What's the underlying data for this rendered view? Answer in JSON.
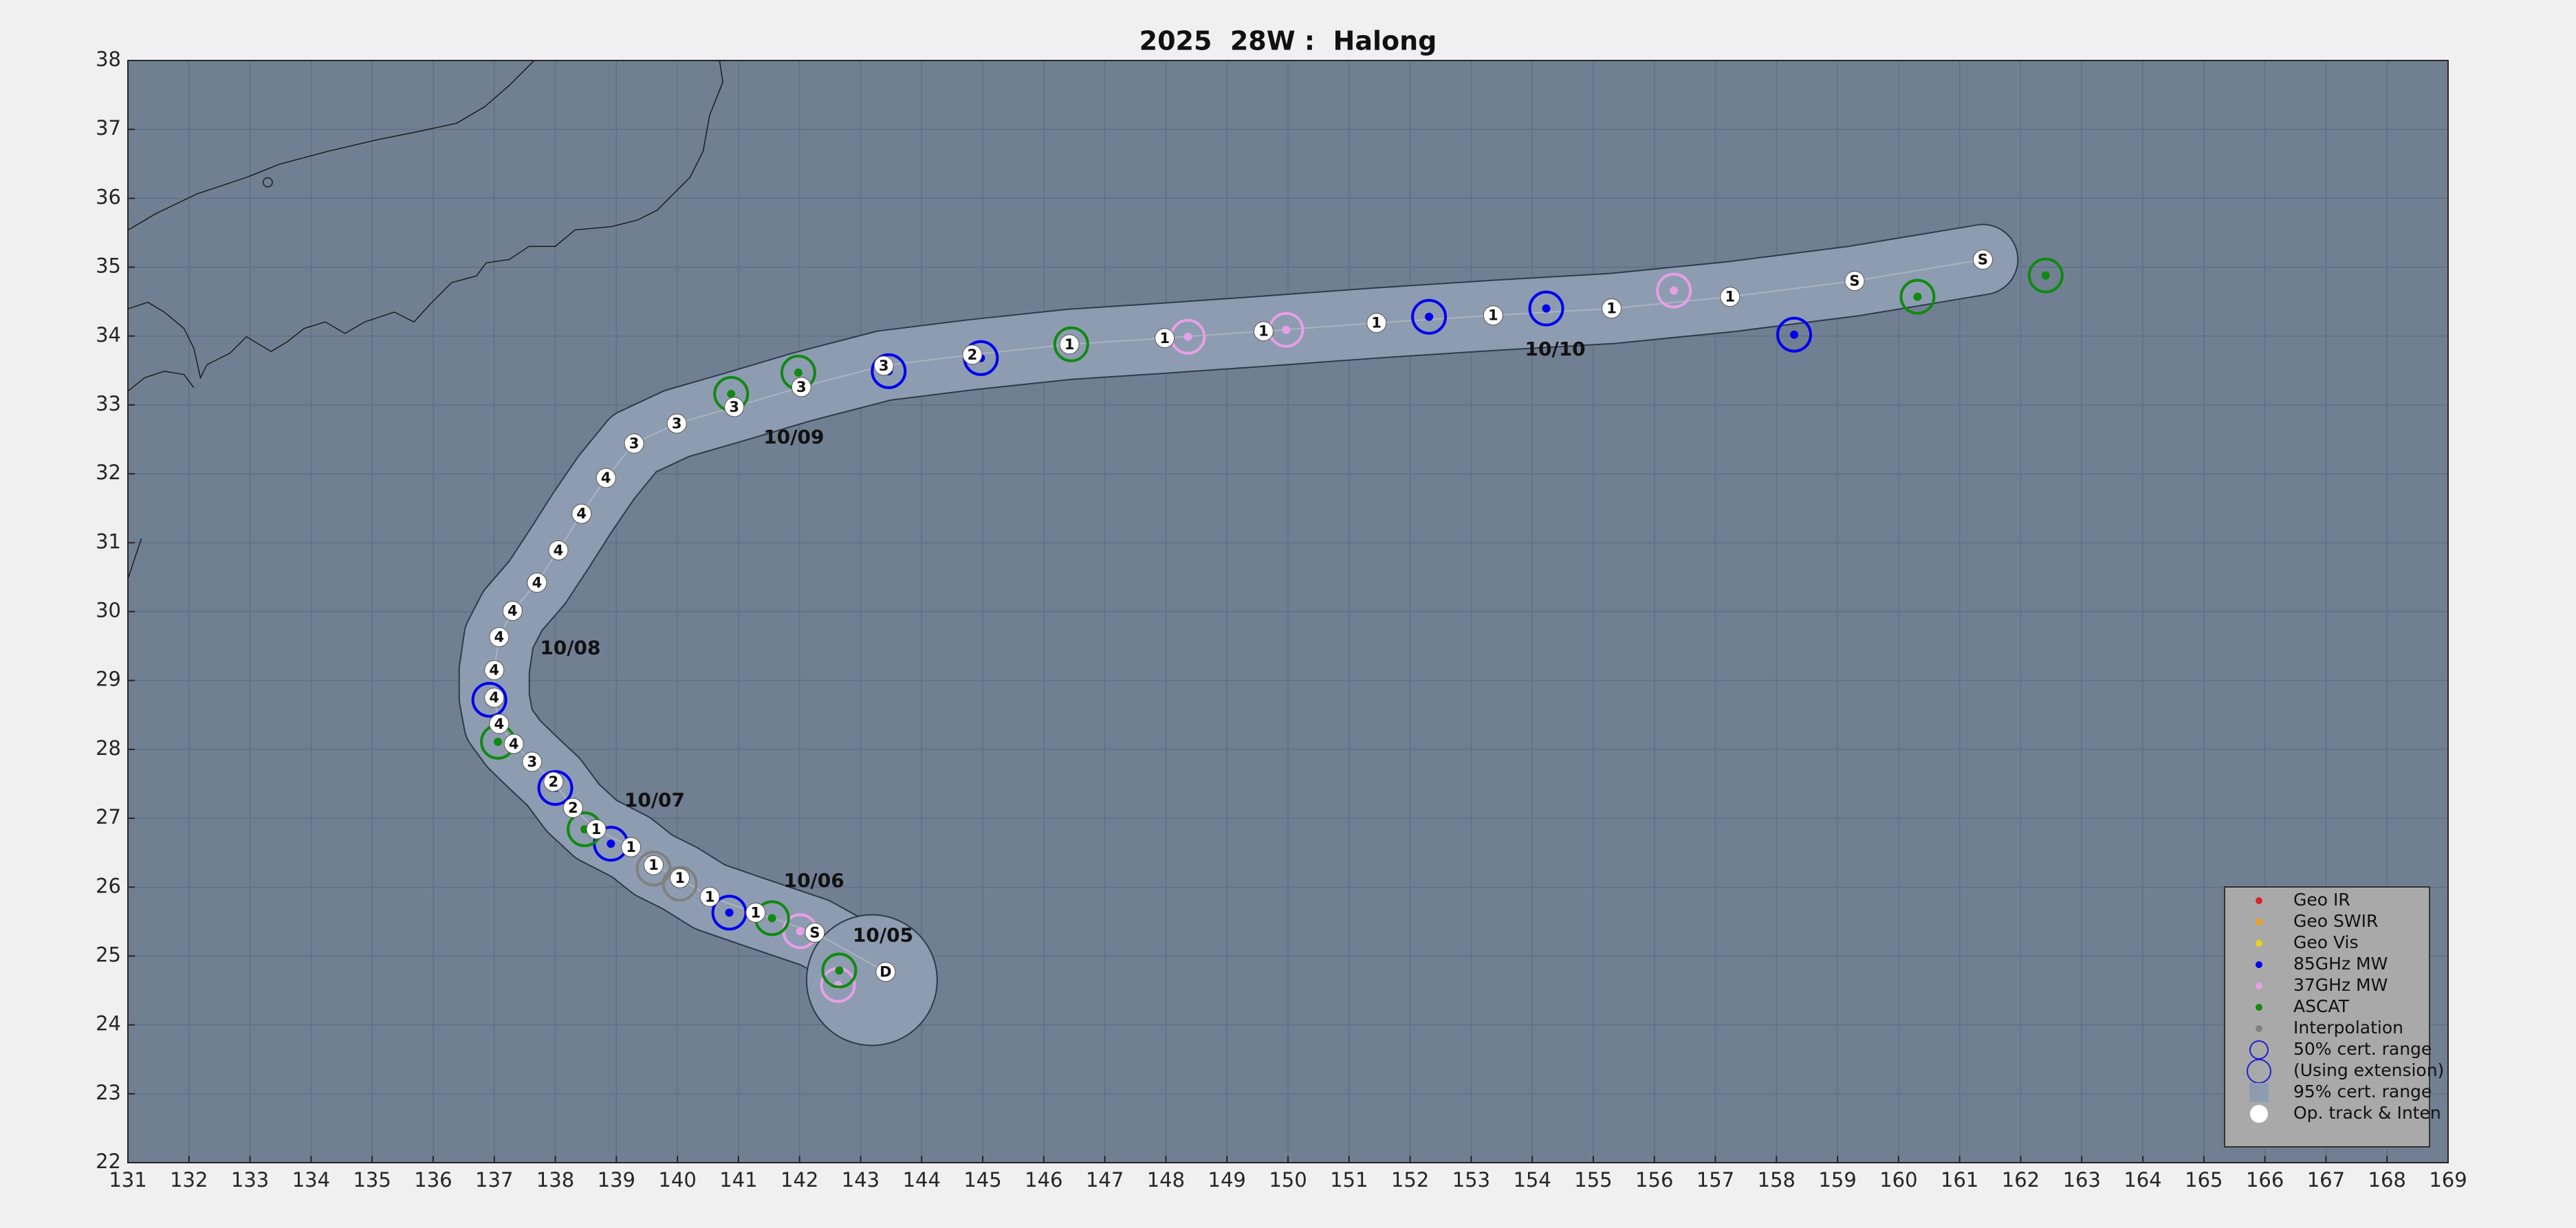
{
  "chart_data": {
    "type": "track",
    "title": "2025  28W :  Halong",
    "xlim": [
      131,
      169
    ],
    "ylim": [
      22,
      38
    ],
    "xticks": [
      131,
      132,
      133,
      134,
      135,
      136,
      137,
      138,
      139,
      140,
      141,
      142,
      143,
      144,
      145,
      146,
      147,
      148,
      149,
      150,
      151,
      152,
      153,
      154,
      155,
      156,
      157,
      158,
      159,
      160,
      161,
      162,
      163,
      164,
      165,
      166,
      167,
      168,
      169
    ],
    "yticks": [
      22,
      23,
      24,
      25,
      26,
      27,
      28,
      29,
      30,
      31,
      32,
      33,
      34,
      35,
      36,
      37,
      38
    ],
    "grid": true,
    "legend": "lower right",
    "track": {
      "name": "Op. track & Inten",
      "color": "#ffffff",
      "x": [
        143.41,
        142.25,
        141.28,
        140.53,
        140.04,
        139.61,
        139.24,
        138.67,
        138.29,
        137.97,
        137.62,
        137.32,
        137.08,
        137.0,
        137.0,
        137.08,
        137.3,
        137.7,
        138.05,
        138.43,
        138.83,
        139.29,
        139.99,
        140.93,
        142.03,
        143.38,
        144.83,
        146.42,
        147.98,
        149.6,
        151.45,
        153.36,
        155.3,
        157.24,
        159.28,
        161.38
      ],
      "y": [
        24.77,
        25.34,
        25.63,
        25.86,
        26.13,
        26.32,
        26.58,
        26.84,
        27.15,
        27.53,
        27.82,
        28.08,
        28.37,
        28.75,
        29.15,
        29.63,
        30.01,
        30.42,
        30.89,
        31.42,
        31.94,
        32.44,
        32.73,
        32.97,
        33.26,
        33.57,
        33.73,
        33.88,
        33.97,
        34.07,
        34.19,
        34.3,
        34.4,
        34.57,
        34.8,
        35.11
      ],
      "labels": [
        "D",
        "S",
        "1",
        "1",
        "1",
        "1",
        "1",
        "1",
        "2",
        "2",
        "3",
        "4",
        "4",
        "4",
        "4",
        "4",
        "4",
        "4",
        "4",
        "4",
        "4",
        "3",
        "3",
        "3",
        "3",
        "3",
        "2",
        "1",
        "1",
        "1",
        "1",
        "1",
        "1",
        "1",
        "S",
        "S"
      ]
    },
    "fixes": [
      {
        "name": "Geo IR",
        "color": "#d62728",
        "x": [],
        "y": []
      },
      {
        "name": "Geo SWIR",
        "color": "#f0a020",
        "x": [],
        "y": []
      },
      {
        "name": "Geo Vis",
        "color": "#e8d020",
        "x": [],
        "y": []
      },
      {
        "name": "85GHz MW",
        "color": "#0000ee",
        "x": [
          158.29,
          152.31,
          154.23,
          143.46,
          144.97,
          140.85,
          138.91,
          138.0,
          136.92
        ],
        "y": [
          34.02,
          34.28,
          34.4,
          33.49,
          33.68,
          25.63,
          26.63,
          27.44,
          28.72
        ]
      },
      {
        "name": "37GHz MW",
        "color": "#e6a0e6",
        "x": [
          156.32,
          149.97,
          148.36,
          142.63,
          142.01
        ],
        "y": [
          34.66,
          34.09,
          33.99,
          24.58,
          25.36
        ]
      },
      {
        "name": "ASCAT",
        "color": "#108a10",
        "x": [
          160.31,
          162.41,
          146.45,
          141.98,
          140.88,
          137.06,
          138.48,
          141.55,
          142.65
        ],
        "y": [
          34.57,
          34.88,
          33.88,
          33.47,
          33.16,
          28.11,
          26.84,
          25.55,
          24.79
        ]
      },
      {
        "name": "Interpolation",
        "color": "#808080",
        "x": [
          139.61,
          140.04
        ],
        "y": [
          26.27,
          26.05
        ]
      }
    ],
    "legend_extras": [
      "50% cert. range",
      "(Using extension)",
      "95% cert. range"
    ],
    "annotations": [
      {
        "text": "10/05",
        "x": 142.87,
        "y": 25.29
      },
      {
        "text": "10/06",
        "x": 141.74,
        "y": 26.08
      },
      {
        "text": "10/07",
        "x": 139.13,
        "y": 27.25
      },
      {
        "text": "10/08",
        "x": 137.75,
        "y": 29.46
      },
      {
        "text": "10/09",
        "x": 141.41,
        "y": 32.52
      },
      {
        "text": "10/10",
        "x": 153.88,
        "y": 33.8
      }
    ]
  }
}
